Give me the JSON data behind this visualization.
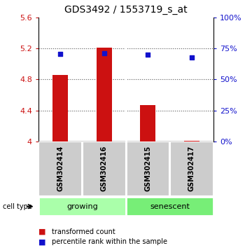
{
  "title": "GDS3492 / 1553719_s_at",
  "samples": [
    "GSM302414",
    "GSM302416",
    "GSM302415",
    "GSM302417"
  ],
  "bar_values": [
    4.855,
    5.205,
    4.47,
    4.01
  ],
  "percentile_values": [
    70.5,
    71.0,
    70.0,
    67.5
  ],
  "left_ylim": [
    4.0,
    5.6
  ],
  "left_yticks": [
    4.0,
    4.4,
    4.8,
    5.2,
    5.6
  ],
  "right_ylim": [
    0,
    100
  ],
  "right_yticks": [
    0,
    25,
    50,
    75,
    100
  ],
  "bar_color": "#cc1111",
  "dot_color": "#1111cc",
  "bar_width": 0.35,
  "groups": [
    {
      "label": "growing",
      "indices": [
        0,
        1
      ],
      "color": "#aaffaa"
    },
    {
      "label": "senescent",
      "indices": [
        2,
        3
      ],
      "color": "#77ee77"
    }
  ],
  "group_box_color": "#cccccc",
  "dotted_line_color": "#555555",
  "background_plot": "#ffffff",
  "title_fontsize": 10,
  "tick_fontsize": 8,
  "sample_fontsize": 7,
  "group_fontsize": 8,
  "legend_fontsize": 7
}
